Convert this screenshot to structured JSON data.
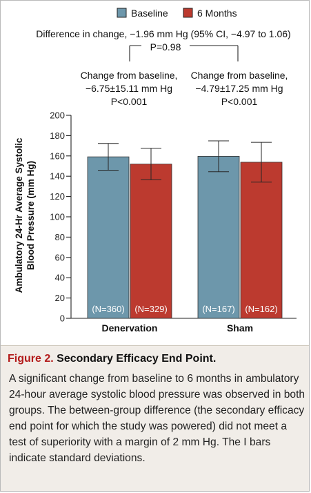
{
  "chart_data": {
    "type": "bar",
    "ylabel_line1": "Ambulatory 24-Hr Average Systolic",
    "ylabel_line2": "Blood Pressure (mm Hg)",
    "ylim": [
      0,
      200
    ],
    "yticks": [
      0,
      20,
      40,
      60,
      80,
      100,
      120,
      140,
      160,
      180,
      200
    ],
    "categories": [
      "Denervation",
      "Sham"
    ],
    "legend": {
      "placement": "top-center",
      "items": [
        "Baseline",
        "6 Months"
      ]
    },
    "series": [
      {
        "name": "Baseline",
        "color": "#6d97ab",
        "values": [
          159.1,
          159.6
        ],
        "sd": [
          13.2,
          15.2
        ],
        "n_labels": [
          "(N=360)",
          "(N=167)"
        ]
      },
      {
        "name": "6 Months",
        "color": "#bc3a2f",
        "values": [
          152.0,
          153.8
        ],
        "sd": [
          15.5,
          19.6
        ],
        "n_labels": [
          "(N=329)",
          "(N=162)"
        ]
      }
    ],
    "annotations": {
      "difference": "Difference in change, −1.96 mm Hg (95% CI, −4.97 to 1.06)",
      "difference_p": "P=0.98",
      "denervation": {
        "line1": "Change from baseline,",
        "line2": "−6.75±15.11 mm Hg",
        "line3": "P<0.001"
      },
      "sham": {
        "line1": "Change from baseline,",
        "line2": "−4.79±17.25 mm Hg",
        "line3": "P<0.001"
      }
    }
  },
  "caption": {
    "label": "Figure 2.",
    "title": "Secondary Efficacy End Point.",
    "body": "A significant change from baseline to 6 months in ambulatory 24-hour average systolic blood pressure was observed in both groups. The between-group difference (the secondary efficacy end point for which the study was powered) did not meet a test of superiority with a margin of 2 mm Hg. The I bars indicate standard deviations."
  }
}
